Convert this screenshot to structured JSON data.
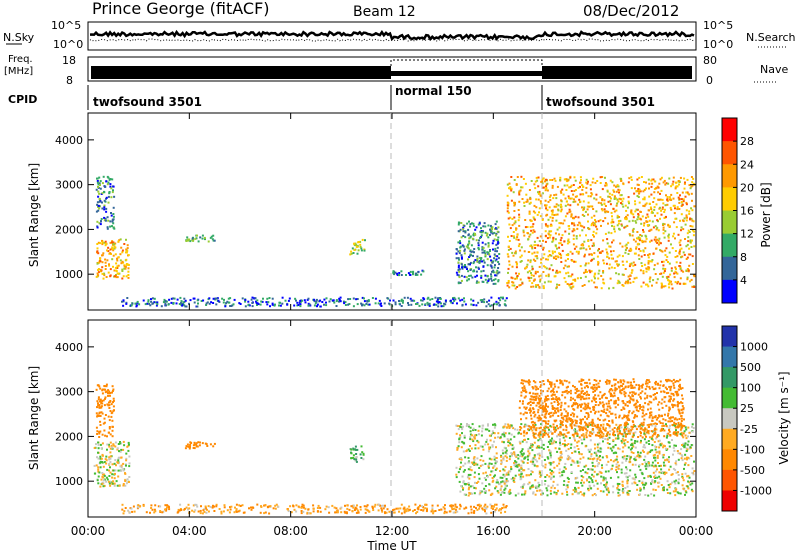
{
  "header": {
    "title": "Prince George (fitACF)",
    "beam": "Beam 12",
    "date": "08/Dec/2012"
  },
  "top_panels": {
    "nsky_label": "N.Sky",
    "nsky_ticks": [
      "10^5",
      "10^0"
    ],
    "nsearch_label": "N.Search",
    "nsearch_ticks": [
      "10^5",
      "10^0"
    ],
    "freq_label": "Freq.",
    "freq_unit": "[MHz]",
    "freq_ticks": [
      "18",
      "8"
    ],
    "nave_label": "Nave",
    "nave_ticks": [
      "80",
      "0"
    ],
    "cpid_label": "CPID",
    "cpid_segments": [
      {
        "name": "twofsound 3501",
        "start_ut": 0,
        "end_ut": 12
      },
      {
        "name": "normal 150",
        "start_ut": 12,
        "end_ut": 18
      },
      {
        "name": "twofsound 3501",
        "start_ut": 18,
        "end_ut": 24
      }
    ]
  },
  "power_colorbar": {
    "title": "Power [dB]",
    "ticks": [
      "28",
      "24",
      "20",
      "16",
      "12",
      "8",
      "4"
    ],
    "colors": [
      "#ff0000",
      "#ff5500",
      "#ff9900",
      "#ffcc00",
      "#99cc33",
      "#33aa66",
      "#336699",
      "#0000ff"
    ]
  },
  "velocity_colorbar": {
    "title": "Velocity [m s⁻¹]",
    "ticks": [
      "1000",
      "500",
      "100",
      "25",
      "-25",
      "-100",
      "-500",
      "-1000"
    ],
    "colors": [
      "#2233aa",
      "#3377aa",
      "#339966",
      "#44bb33",
      "#c8c8c0",
      "#ffaa22",
      "#ff8800",
      "#ff5500",
      "#ee0000"
    ]
  },
  "chart_data": [
    {
      "type": "heatmap",
      "panel": "power",
      "ylabel": "Slant Range [km]",
      "yticks": [
        "1000",
        "2000",
        "3000",
        "4000"
      ],
      "ylim": [
        200,
        4600
      ],
      "xlim": [
        0,
        24
      ],
      "regions": [
        {
          "t0": 0.3,
          "t1": 1.6,
          "r0": 900,
          "r1": 1800,
          "level": 20
        },
        {
          "t0": 0.3,
          "t1": 1.0,
          "r0": 2000,
          "r1": 3200,
          "level": 8
        },
        {
          "t0": 1.3,
          "t1": 16.5,
          "r0": 300,
          "r1": 500,
          "level": 6
        },
        {
          "t0": 3.8,
          "t1": 5.0,
          "r0": 1750,
          "r1": 1900,
          "level": 10
        },
        {
          "t0": 10.3,
          "t1": 10.9,
          "r0": 1450,
          "r1": 1800,
          "level": 14
        },
        {
          "t0": 12.0,
          "t1": 13.2,
          "r0": 1000,
          "r1": 1100,
          "level": 6
        },
        {
          "t0": 14.5,
          "t1": 16.2,
          "r0": 800,
          "r1": 2200,
          "level": 8
        },
        {
          "t0": 16.5,
          "t1": 23.9,
          "r0": 700,
          "r1": 3200,
          "level": 20
        }
      ]
    },
    {
      "type": "heatmap",
      "panel": "velocity",
      "ylabel": "Slant Range [km]",
      "xlabel": "Time UT",
      "xticks": [
        "00:00",
        "04:00",
        "08:00",
        "12:00",
        "16:00",
        "20:00",
        "00:00"
      ],
      "yticks": [
        "1000",
        "2000",
        "3000",
        "4000"
      ],
      "ylim": [
        200,
        4600
      ],
      "xlim": [
        0,
        24
      ],
      "regions": [
        {
          "t0": 0.2,
          "t1": 1.6,
          "r0": 900,
          "r1": 1900,
          "level": 0
        },
        {
          "t0": 0.3,
          "t1": 1.0,
          "r0": 2000,
          "r1": 3200,
          "level": -200
        },
        {
          "t0": 1.3,
          "t1": 16.5,
          "r0": 300,
          "r1": 500,
          "level": -100
        },
        {
          "t0": 3.8,
          "t1": 5.0,
          "r0": 1750,
          "r1": 1900,
          "level": -300
        },
        {
          "t0": 10.3,
          "t1": 10.9,
          "r0": 1450,
          "r1": 1800,
          "level": 100
        },
        {
          "t0": 14.5,
          "t1": 23.9,
          "r0": 700,
          "r1": 2300,
          "level": 0
        },
        {
          "t0": 17.0,
          "t1": 23.5,
          "r0": 2000,
          "r1": 3300,
          "level": -200
        }
      ]
    }
  ]
}
